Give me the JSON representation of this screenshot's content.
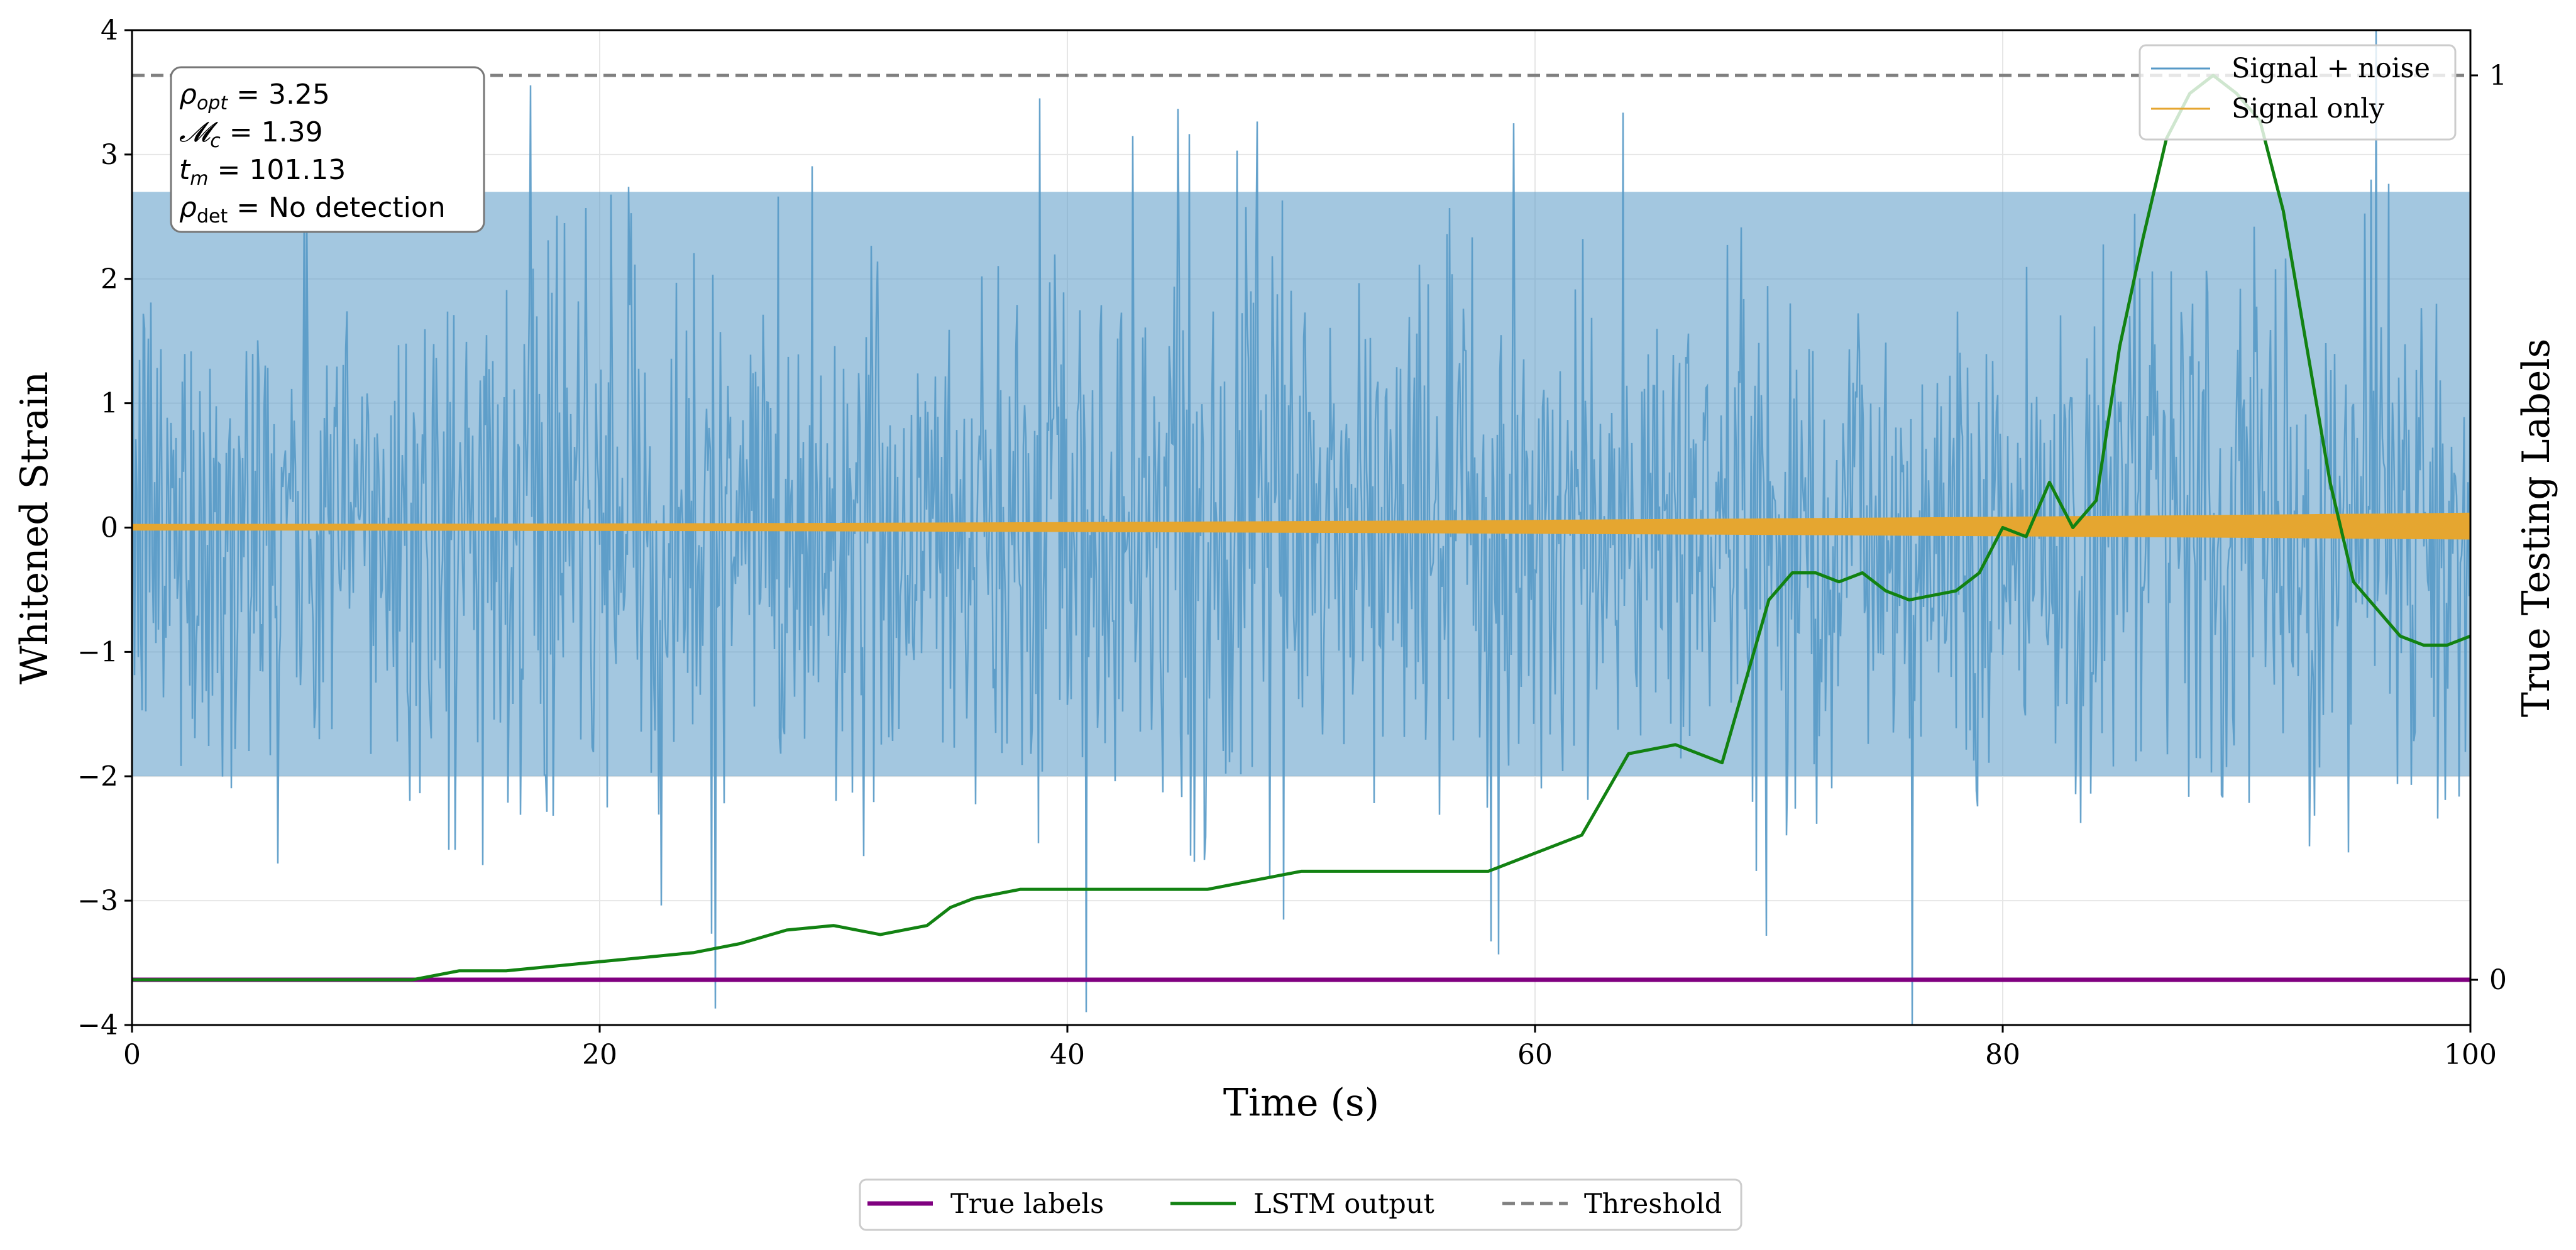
{
  "chart_data": {
    "type": "line",
    "xlabel": "Time (s)",
    "ylabel": "Whitened Strain",
    "y2label": "True Testing Labels",
    "xlim": [
      0,
      100
    ],
    "ylim": [
      -4,
      4
    ],
    "y2lim": [
      -0.05,
      1.05
    ],
    "xticks": [
      "0",
      "20",
      "40",
      "60",
      "80",
      "100"
    ],
    "yticks": [
      "4",
      "3",
      "2",
      "1",
      "0",
      "−1",
      "−2",
      "−3",
      "−4"
    ],
    "y2ticks": [
      "1",
      "0"
    ],
    "threshold": 1.0,
    "info_box": {
      "rho_opt": "3.25",
      "mchirp": "1.39",
      "t_m": "101.13",
      "rho_det": "No detection"
    },
    "legend_upper": [
      "Signal + noise",
      "Signal only"
    ],
    "legend_lower": [
      "True labels",
      "LSTM output",
      "Threshold"
    ],
    "series": [
      {
        "name": "Signal + noise",
        "color": "#5799c7",
        "amplitude_band": [
          -2.0,
          2.7
        ]
      },
      {
        "name": "Signal only",
        "color": "#e5a630",
        "amplitude_band": [
          -0.06,
          0.12
        ]
      },
      {
        "name": "True labels",
        "color": "#800080",
        "x": [
          0,
          100
        ],
        "values": [
          0,
          0
        ]
      },
      {
        "name": "LSTM output",
        "color": "#128212",
        "x": [
          0,
          12,
          14,
          16,
          18,
          20,
          22,
          24,
          26,
          28,
          30,
          32,
          34,
          35,
          36,
          38,
          40,
          42,
          44,
          46,
          48,
          50,
          52,
          54,
          56,
          58,
          60,
          61,
          62,
          64,
          66,
          68,
          70,
          71,
          72,
          73,
          74,
          75,
          76,
          78,
          79,
          80,
          81,
          82,
          83,
          84,
          85,
          86,
          87,
          88,
          89,
          90,
          91,
          92,
          93,
          94,
          95,
          96,
          97,
          98,
          99,
          100
        ],
        "values": [
          0,
          0,
          0.01,
          0.01,
          0.015,
          0.02,
          0.025,
          0.03,
          0.04,
          0.055,
          0.06,
          0.05,
          0.06,
          0.08,
          0.09,
          0.1,
          0.1,
          0.1,
          0.1,
          0.1,
          0.11,
          0.12,
          0.12,
          0.12,
          0.12,
          0.12,
          0.14,
          0.15,
          0.16,
          0.25,
          0.26,
          0.24,
          0.42,
          0.45,
          0.45,
          0.44,
          0.45,
          0.43,
          0.42,
          0.43,
          0.45,
          0.5,
          0.49,
          0.55,
          0.5,
          0.53,
          0.7,
          0.82,
          0.93,
          0.98,
          1.0,
          0.98,
          0.95,
          0.85,
          0.7,
          0.55,
          0.44,
          0.41,
          0.38,
          0.37,
          0.37,
          0.38
        ]
      }
    ]
  }
}
